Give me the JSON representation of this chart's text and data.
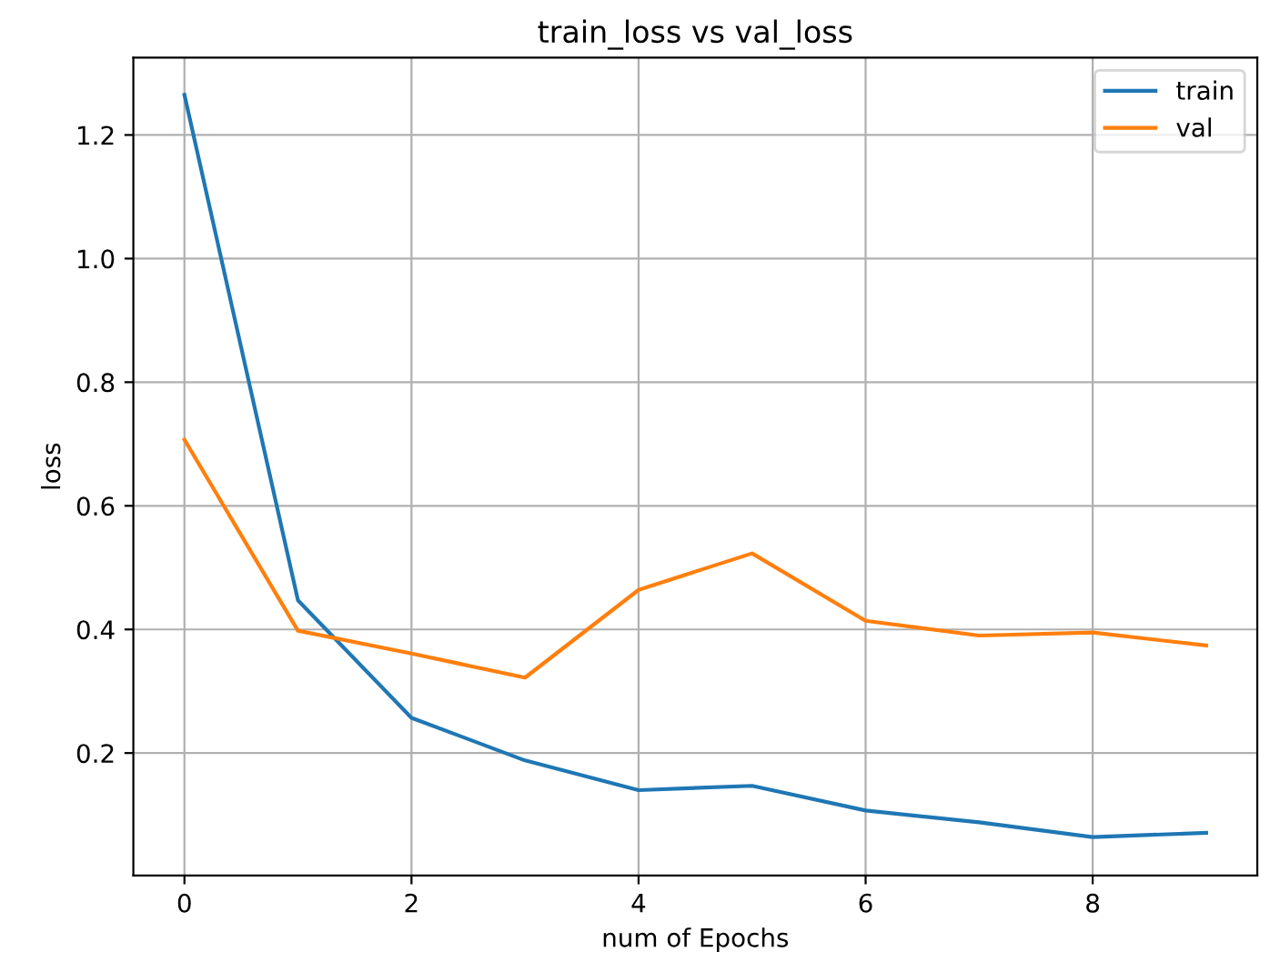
{
  "chart_data": {
    "type": "line",
    "title": "train_loss vs val_loss",
    "xlabel": "num of Epochs",
    "ylabel": "loss",
    "x": [
      0,
      1,
      2,
      3,
      4,
      5,
      6,
      7,
      8,
      9
    ],
    "series": [
      {
        "name": "train",
        "color": "#1f77b4",
        "values": [
          1.265,
          0.447,
          0.257,
          0.188,
          0.14,
          0.147,
          0.107,
          0.088,
          0.064,
          0.071
        ]
      },
      {
        "name": "val",
        "color": "#ff7f0e",
        "values": [
          0.707,
          0.398,
          0.361,
          0.322,
          0.464,
          0.523,
          0.414,
          0.39,
          0.395,
          0.374
        ]
      }
    ],
    "xlim": [
      -0.45,
      9.45
    ],
    "xticks": [
      0,
      2,
      4,
      6,
      8
    ],
    "ylim": [
      0.002,
      1.325
    ],
    "yticks": [
      0.2,
      0.4,
      0.6,
      0.8,
      {
        "value": 1.0,
        "label": "1.0"
      },
      1.2
    ],
    "grid": true,
    "legend": "top right",
    "marker": "none",
    "line_style": "solid"
  }
}
